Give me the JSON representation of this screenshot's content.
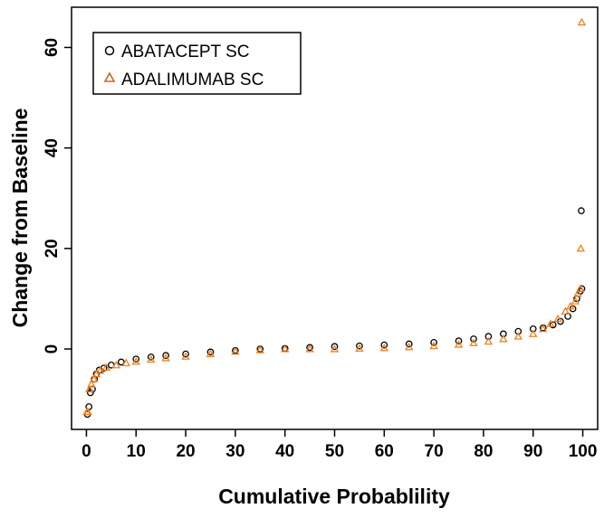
{
  "chart_data": {
    "type": "scatter",
    "title": "",
    "xlabel": "Cumulative Probablility",
    "ylabel": "Change from Baseline",
    "xlim": [
      -3,
      103
    ],
    "ylim": [
      -16,
      68
    ],
    "xticks": [
      0,
      10,
      20,
      30,
      40,
      50,
      60,
      70,
      80,
      90,
      100
    ],
    "yticks": [
      0,
      20,
      40,
      60
    ],
    "grid": false,
    "legend_position": "top-left",
    "series": [
      {
        "name": "ABATACEPT SC",
        "marker": "circle",
        "color": "#000000",
        "points": [
          [
            0.2,
            -13
          ],
          [
            0.5,
            -11.5
          ],
          [
            0.8,
            -8.7
          ],
          [
            1.2,
            -8
          ],
          [
            1.6,
            -6
          ],
          [
            2,
            -5
          ],
          [
            2.6,
            -4.2
          ],
          [
            3.5,
            -3.8
          ],
          [
            5,
            -3.2
          ],
          [
            7,
            -2.6
          ],
          [
            10,
            -2
          ],
          [
            13,
            -1.6
          ],
          [
            16,
            -1.3
          ],
          [
            20,
            -1
          ],
          [
            25,
            -0.6
          ],
          [
            30,
            -0.3
          ],
          [
            35,
            0
          ],
          [
            40,
            0.1
          ],
          [
            45,
            0.3
          ],
          [
            50,
            0.5
          ],
          [
            55,
            0.6
          ],
          [
            60,
            0.8
          ],
          [
            65,
            1
          ],
          [
            70,
            1.3
          ],
          [
            75,
            1.6
          ],
          [
            78,
            2
          ],
          [
            81,
            2.5
          ],
          [
            84,
            3
          ],
          [
            87,
            3.5
          ],
          [
            90,
            4
          ],
          [
            92,
            4.2
          ],
          [
            94,
            4.8
          ],
          [
            95.5,
            5.5
          ],
          [
            97,
            6.5
          ],
          [
            98,
            8
          ],
          [
            98.8,
            10
          ],
          [
            99.5,
            11.5
          ],
          [
            99.8,
            12
          ],
          [
            99.7,
            27.5
          ]
        ]
      },
      {
        "name": "ADALIMUMAB SC",
        "marker": "triangle",
        "color": "#f08020",
        "points": [
          [
            0.1,
            -12.5
          ],
          [
            0.3,
            -12.5
          ],
          [
            0.6,
            -8
          ],
          [
            1,
            -7
          ],
          [
            1.5,
            -6
          ],
          [
            2,
            -5
          ],
          [
            2.8,
            -4.3
          ],
          [
            4,
            -3.7
          ],
          [
            6,
            -3.2
          ],
          [
            8,
            -2.8
          ],
          [
            10,
            -2.5
          ],
          [
            13,
            -2.1
          ],
          [
            16,
            -1.8
          ],
          [
            20,
            -1.5
          ],
          [
            25,
            -1
          ],
          [
            30,
            -0.5
          ],
          [
            35,
            -0.2
          ],
          [
            40,
            0
          ],
          [
            45,
            0
          ],
          [
            50,
            0
          ],
          [
            55,
            0.1
          ],
          [
            60,
            0.2
          ],
          [
            65,
            0.4
          ],
          [
            70,
            0.6
          ],
          [
            75,
            0.9
          ],
          [
            78,
            1.2
          ],
          [
            81,
            1.5
          ],
          [
            84,
            2
          ],
          [
            87,
            2.5
          ],
          [
            90,
            3
          ],
          [
            92,
            4
          ],
          [
            93.5,
            5
          ],
          [
            95,
            6
          ],
          [
            96.5,
            7.5
          ],
          [
            97.5,
            8.5
          ],
          [
            98.5,
            9.5
          ],
          [
            99,
            11
          ],
          [
            99.5,
            12
          ],
          [
            99.6,
            20
          ],
          [
            99.8,
            65
          ]
        ]
      }
    ]
  }
}
